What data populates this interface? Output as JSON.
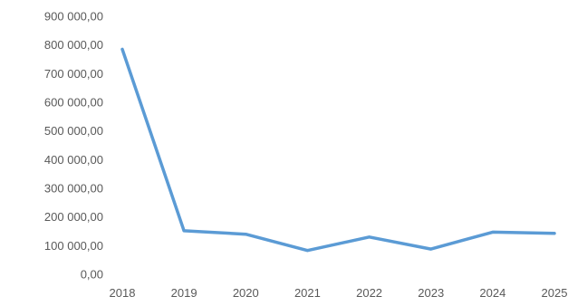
{
  "chart_data": {
    "type": "line",
    "title": "",
    "xlabel": "",
    "ylabel": "",
    "x": [
      "2018",
      "2019",
      "2020",
      "2021",
      "2022",
      "2023",
      "2024",
      "2025"
    ],
    "series": [
      {
        "values": [
          785000,
          152000,
          140000,
          83000,
          130000,
          88000,
          147000,
          143000
        ],
        "color": "#5b9bd5"
      }
    ],
    "ylim": [
      0,
      900000
    ],
    "y_ticks": [
      "900 000,00",
      "800 000,00",
      "700 000,00",
      "600 000,00",
      "500 000,00",
      "400 000,00",
      "300 000,00",
      "200 000,00",
      "100 000,00",
      "0,00"
    ],
    "grid": false,
    "legend": "none"
  }
}
